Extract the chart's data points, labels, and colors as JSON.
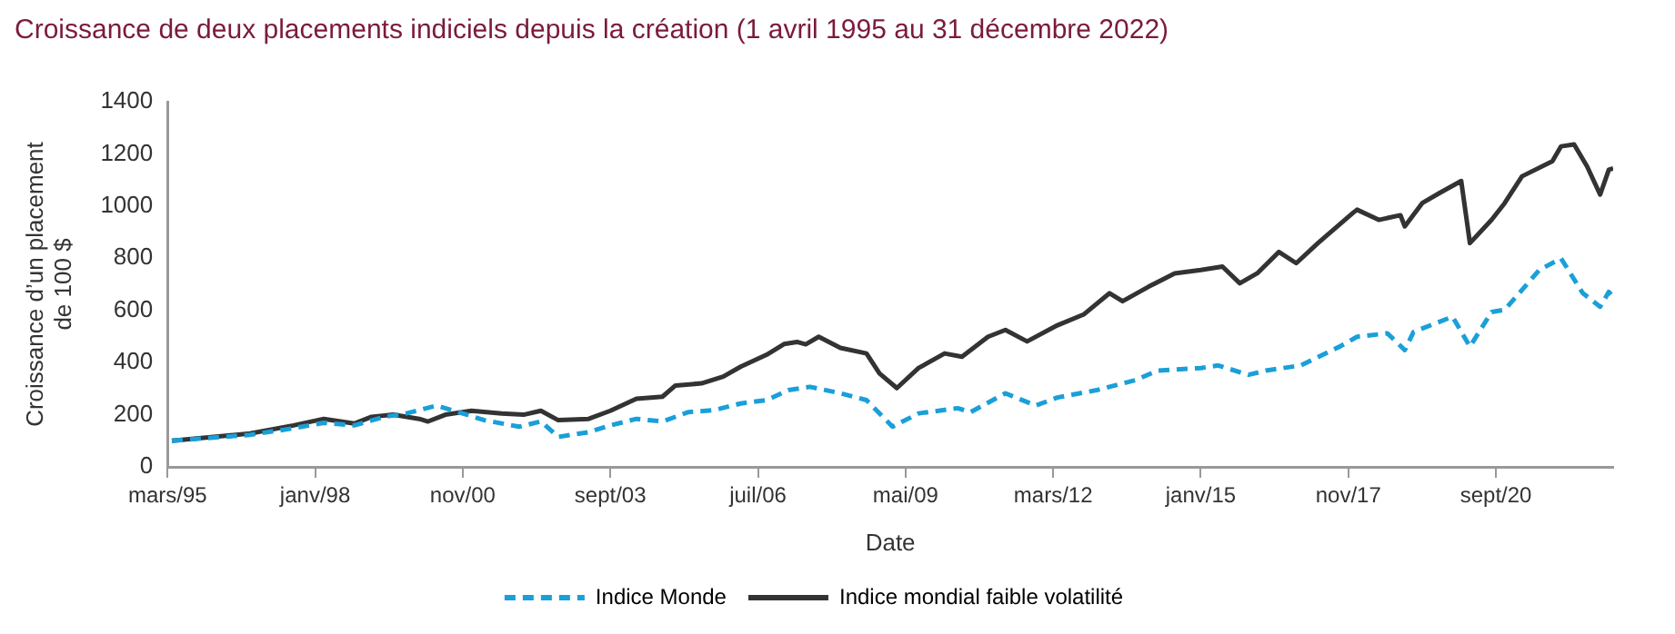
{
  "chart_data": {
    "type": "line",
    "title": "Croissance de deux placements indiciels depuis la création (1 avril 1995 au 31 décembre 2022)",
    "xlabel": "Date",
    "ylabel": "Croissance d’un placement de 100 $",
    "xlim": [
      "1995-03",
      "2022-12"
    ],
    "xticks": [
      {
        "value": "1995-03",
        "label": "mars/95"
      },
      {
        "value": "1998-01",
        "label": "janv/98"
      },
      {
        "value": "2000-11",
        "label": "nov/00"
      },
      {
        "value": "2003-09",
        "label": "sept/03"
      },
      {
        "value": "2006-07",
        "label": "juil/06"
      },
      {
        "value": "2009-05",
        "label": "mai/09"
      },
      {
        "value": "2012-03",
        "label": "mars/12"
      },
      {
        "value": "2015-01",
        "label": "janv/15"
      },
      {
        "value": "2017-11",
        "label": "nov/17"
      },
      {
        "value": "2020-09",
        "label": "sept/20"
      }
    ],
    "ylim": [
      0,
      1400
    ],
    "yticks": [
      0,
      200,
      400,
      600,
      800,
      1000,
      1200,
      1400
    ],
    "grid": false,
    "legend": "bottom",
    "marker": "none",
    "series": [
      {
        "name": "Indice Monde",
        "color": "#1a9fd9",
        "line_style": "dashed",
        "x": [
          "1995-04",
          "1996-10",
          "1997-08",
          "1998-03",
          "1998-10",
          "1999-05",
          "1999-10",
          "2000-05",
          "2000-09",
          "2001-04",
          "2001-12",
          "2002-05",
          "2002-09",
          "2003-04",
          "2003-09",
          "2004-03",
          "2004-09",
          "2005-03",
          "2005-09",
          "2006-03",
          "2006-09",
          "2007-02",
          "2007-07",
          "2008-02",
          "2008-08",
          "2009-02",
          "2009-08",
          "2010-05",
          "2010-08",
          "2011-04",
          "2011-11",
          "2012-04",
          "2013-01",
          "2013-10",
          "2014-03",
          "2015-01",
          "2015-05",
          "2015-12",
          "2016-04",
          "2016-12",
          "2017-09",
          "2018-01",
          "2018-08",
          "2018-12",
          "2019-02",
          "2019-11",
          "2020-03",
          "2020-08",
          "2020-11",
          "2021-07",
          "2021-12",
          "2022-05",
          "2022-09",
          "2022-11",
          "2022-12"
        ],
        "values": [
          100,
          123,
          148,
          169,
          159,
          192,
          205,
          235,
          215,
          179,
          154,
          174,
          115,
          133,
          159,
          184,
          174,
          210,
          218,
          243,
          256,
          294,
          307,
          282,
          256,
          154,
          205,
          225,
          210,
          282,
          235,
          266,
          294,
          333,
          369,
          379,
          389,
          353,
          369,
          389,
          461,
          499,
          512,
          448,
          517,
          576,
          461,
          594,
          602,
          755,
          799,
          666,
          614,
          671,
          653
        ]
      },
      {
        "name": "Indice mondial faible volatilité",
        "color": "#333333",
        "line_style": "solid",
        "x": [
          "1995-04",
          "1996-10",
          "1997-08",
          "1998-03",
          "1998-10",
          "1999-02",
          "1999-07",
          "2000-01",
          "2000-03",
          "2000-07",
          "2001-01",
          "2001-08",
          "2002-01",
          "2002-05",
          "2002-09",
          "2003-04",
          "2003-09",
          "2004-03",
          "2004-09",
          "2004-12",
          "2005-06",
          "2005-11",
          "2006-03",
          "2006-09",
          "2007-01",
          "2007-04",
          "2007-06",
          "2007-09",
          "2008-02",
          "2008-08",
          "2008-11",
          "2009-03",
          "2009-08",
          "2010-02",
          "2010-06",
          "2010-12",
          "2011-04",
          "2011-09",
          "2012-04",
          "2012-10",
          "2013-04",
          "2013-07",
          "2014-01",
          "2014-07",
          "2015-01",
          "2015-06",
          "2015-10",
          "2016-02",
          "2016-07",
          "2016-11",
          "2017-04",
          "2017-12",
          "2018-01",
          "2018-06",
          "2018-11",
          "2018-12",
          "2019-04",
          "2019-08",
          "2020-01",
          "2020-03",
          "2020-08",
          "2020-11",
          "2021-03",
          "2021-10",
          "2021-12",
          "2022-03",
          "2022-06",
          "2022-09",
          "2022-11",
          "2022-12"
        ],
        "values": [
          100,
          128,
          159,
          184,
          166,
          192,
          200,
          184,
          174,
          200,
          215,
          205,
          200,
          215,
          179,
          184,
          215,
          261,
          269,
          312,
          320,
          346,
          384,
          430,
          471,
          479,
          470,
          499,
          456,
          435,
          358,
          302,
          379,
          435,
          422,
          499,
          525,
          481,
          543,
          584,
          666,
          635,
          691,
          742,
          755,
          768,
          704,
          742,
          824,
          781,
          858,
          973,
          986,
          947,
          965,
          922,
          1011,
          1050,
          1096,
          858,
          947,
          1011,
          1114,
          1172,
          1229,
          1236,
          1152,
          1044,
          1139,
          1144
        ]
      }
    ]
  }
}
